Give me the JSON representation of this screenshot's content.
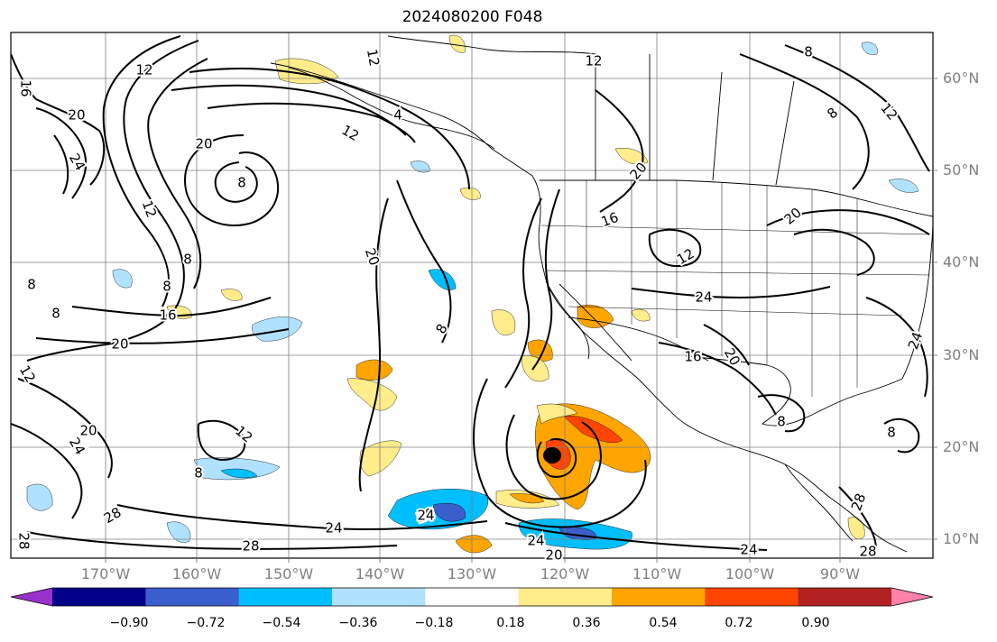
{
  "title": "2024080200 F048",
  "lat_labels": [
    "60°N",
    "50°N",
    "40°N",
    "30°N",
    "20°N",
    "10°N"
  ],
  "lon_labels": [
    "170°W",
    "160°W",
    "150°W",
    "140°W",
    "130°W",
    "120°W",
    "110°W",
    "100°W",
    "90°W"
  ],
  "colorbar": {
    "ticks": [
      "−0.90",
      "−0.72",
      "−0.54",
      "−0.36",
      "−0.18",
      "0.18",
      "0.36",
      "0.54",
      "0.72",
      "0.90"
    ],
    "colors": [
      "#9932cc",
      "#00008b",
      "#3a5fcd",
      "#00bfff",
      "#b0e2ff",
      "#ffffff",
      "#ffec8b",
      "#ffa500",
      "#ff4500",
      "#b22222",
      "#ff82ab"
    ]
  },
  "contour_labels": [
    "16",
    "20",
    "24",
    "12",
    "8",
    "8",
    "20",
    "12",
    "8",
    "8",
    "16",
    "20",
    "12",
    "20",
    "24",
    "28",
    "12",
    "8",
    "28",
    "24",
    "28",
    "20",
    "24",
    "8",
    "12",
    "4",
    "12",
    "20",
    "8",
    "12",
    "8",
    "20",
    "16",
    "12",
    "24",
    "16",
    "20",
    "12",
    "20",
    "8",
    "24",
    "28",
    "20",
    "24",
    "24",
    "28",
    "8",
    "8"
  ],
  "colors": {
    "contour": "#000000",
    "coast": "#000000",
    "grid": "#808080",
    "axis_text": "#808080"
  }
}
